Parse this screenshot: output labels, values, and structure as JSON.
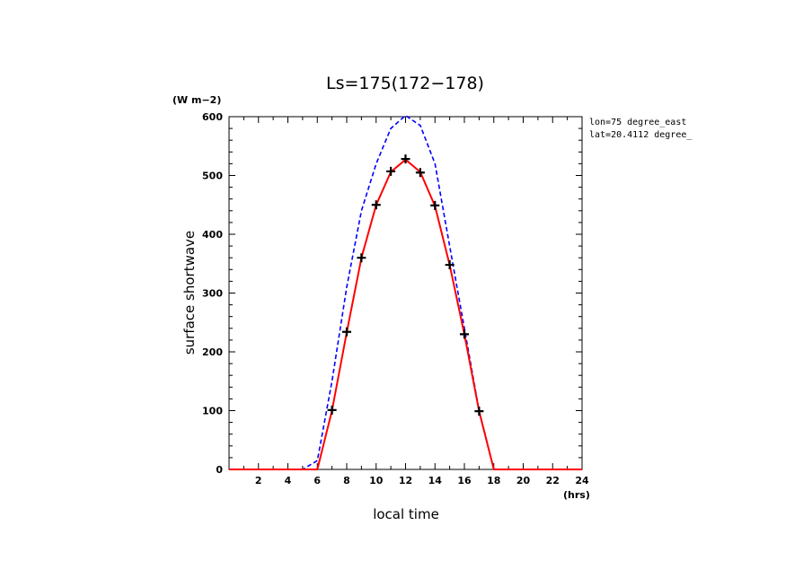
{
  "chart_data": {
    "type": "line",
    "title": "Ls=175(172−178)",
    "xlabel": "local time",
    "ylabel": "surface shortwave",
    "x_unit": "(hrs)",
    "y_unit": "(W m−2)",
    "xlim": [
      0,
      24
    ],
    "ylim": [
      0,
      600
    ],
    "x_ticks": [
      "2",
      "4",
      "6",
      "8",
      "10",
      "12",
      "14",
      "16",
      "18",
      "20",
      "22",
      "24"
    ],
    "y_ticks": [
      "0",
      "100",
      "200",
      "300",
      "400",
      "500",
      "600"
    ],
    "annotations": [
      "lon=75 degree_east",
      "lat=20.4112 degree_"
    ],
    "series": [
      {
        "name": "blue dashed",
        "color": "#0000ff",
        "style": "dashed",
        "x": [
          0,
          1,
          2,
          3,
          4,
          5,
          6,
          7,
          8,
          9,
          10,
          11,
          12,
          13,
          14,
          15,
          16,
          17,
          18,
          19,
          20,
          21,
          22,
          23,
          24
        ],
        "values": [
          0,
          0,
          0,
          0,
          0,
          0,
          15,
          150,
          310,
          440,
          520,
          580,
          602,
          585,
          520,
          380,
          240,
          100,
          0,
          0,
          0,
          0,
          0,
          0,
          0
        ]
      },
      {
        "name": "red solid",
        "color": "#ff0000",
        "style": "solid",
        "x": [
          0,
          1,
          2,
          3,
          4,
          5,
          6,
          7,
          8,
          9,
          10,
          11,
          12,
          13,
          14,
          15,
          16,
          17,
          18,
          19,
          20,
          21,
          22,
          23,
          24
        ],
        "values": [
          0,
          0,
          0,
          0,
          0,
          0,
          0,
          100,
          233,
          360,
          450,
          506,
          527,
          506,
          448,
          348,
          230,
          99,
          0,
          0,
          0,
          0,
          0,
          0,
          0
        ]
      },
      {
        "name": "black markers",
        "color": "#000000",
        "style": "markers",
        "x": [
          7,
          8,
          9,
          10,
          11,
          12,
          13,
          14,
          15,
          16,
          17
        ],
        "values": [
          101,
          234,
          360,
          450,
          507,
          528,
          505,
          449,
          348,
          230,
          99
        ]
      }
    ]
  }
}
